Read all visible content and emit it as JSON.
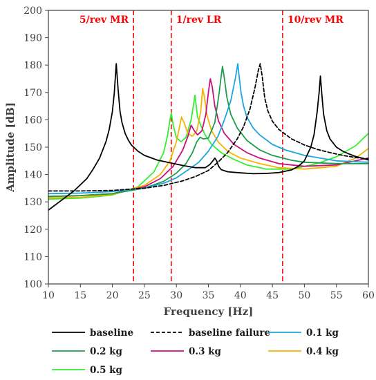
{
  "chart_data": {
    "type": "line",
    "title": "",
    "xlabel": "Frequency [Hz]",
    "ylabel": "Amplitude [dB]",
    "xlim": [
      10,
      60
    ],
    "ylim": [
      100,
      200
    ],
    "x_ticks": [
      10,
      15,
      20,
      25,
      30,
      35,
      40,
      45,
      50,
      55,
      60
    ],
    "y_ticks": [
      100,
      110,
      120,
      130,
      140,
      150,
      160,
      170,
      180,
      190,
      200
    ],
    "grid": false,
    "legend_position": "bottom",
    "annotations": [
      {
        "label": "5/rev MR",
        "x": 23.3,
        "color": "#ff0000"
      },
      {
        "label": "1/rev LR",
        "x": 29.2,
        "color": "#ff0000"
      },
      {
        "label": "10/rev MR",
        "x": 46.6,
        "color": "#ff0000"
      }
    ],
    "series": [
      {
        "name": "baseline",
        "color": "#000000",
        "dash": "solid",
        "x": [
          10,
          12,
          14,
          16,
          17,
          18,
          19,
          19.5,
          20,
          20.3,
          20.6,
          20.9,
          21.2,
          21.5,
          22,
          22.5,
          23,
          24,
          25,
          27,
          29,
          31,
          33,
          34.5,
          35.2,
          35.7,
          36,
          36.3,
          36.6,
          37,
          38,
          40,
          42,
          44,
          46,
          48,
          49,
          50,
          51,
          51.5,
          52,
          52.3,
          52.5,
          52.7,
          53,
          53.5,
          54,
          55,
          56,
          57,
          58,
          59,
          60
        ],
        "y": [
          127,
          130.5,
          134,
          138.5,
          142,
          146,
          152,
          156.5,
          163,
          170,
          180.5,
          171,
          163,
          159,
          155,
          152.5,
          150.7,
          148.5,
          147,
          145.3,
          144.3,
          143.3,
          142.5,
          142.5,
          143.6,
          145,
          146,
          145,
          143,
          141.8,
          141,
          140.6,
          140.3,
          140.4,
          140.7,
          141.7,
          142.9,
          145,
          150,
          154.5,
          163,
          170,
          176,
          170,
          162,
          156,
          153,
          150,
          148.5,
          147.5,
          146.6,
          146,
          145.3
        ]
      },
      {
        "name": "baseline failure",
        "color": "#000000",
        "dash": "dashed",
        "x": [
          10,
          15,
          20,
          25,
          28,
          31,
          33,
          35,
          36.5,
          38,
          39.5,
          40.5,
          41.5,
          42.3,
          42.8,
          43.1,
          43.4,
          43.8,
          44.3,
          45,
          46,
          48,
          50,
          52,
          54,
          56,
          58,
          60
        ],
        "y": [
          134,
          134,
          134.2,
          135,
          136,
          137.7,
          139.3,
          141.5,
          144.5,
          148,
          153,
          157.5,
          164,
          172,
          178,
          180.5,
          176,
          168,
          163.2,
          159.5,
          156.5,
          153,
          150.8,
          149.2,
          148,
          147,
          146.2,
          145.7
        ]
      },
      {
        "name": "0.1 kg",
        "color": "#1aa6dd",
        "dash": "solid",
        "x": [
          10,
          15,
          20,
          25,
          28,
          30,
          32,
          33.5,
          35,
          36.5,
          37.5,
          38.5,
          39.2,
          39.6,
          39.8,
          40.1,
          40.5,
          41,
          42,
          43,
          45,
          47,
          50,
          55,
          60
        ],
        "y": [
          133,
          133.2,
          133.8,
          135,
          136.8,
          138.8,
          142,
          144.5,
          148.5,
          154,
          160,
          167,
          175,
          180.5,
          176,
          170,
          165,
          161,
          157,
          154.5,
          151,
          149,
          147,
          145,
          144.5
        ]
      },
      {
        "name": "0.2 kg",
        "color": "#1e9c4a",
        "dash": "solid",
        "x": [
          10,
          15,
          20,
          25,
          28,
          30,
          31.5,
          32.5,
          33.2,
          33.7,
          34.2,
          35,
          36,
          36.7,
          37,
          37.2,
          37.5,
          37.9,
          38.5,
          39.5,
          41,
          43,
          45,
          48,
          50,
          55,
          60
        ],
        "y": [
          132,
          132.3,
          133,
          135,
          137.5,
          140.5,
          144,
          148,
          152,
          153.6,
          153,
          153.3,
          159,
          170,
          176,
          179.5,
          175,
          168,
          162,
          157,
          152.5,
          149,
          147,
          145.2,
          144.5,
          144,
          144
        ]
      },
      {
        "name": "0.3 kg",
        "color": "#c8107e",
        "dash": "solid",
        "x": [
          10,
          15,
          20,
          25,
          27.5,
          29.5,
          31,
          31.8,
          32.3,
          32.8,
          33.3,
          34,
          34.6,
          35,
          35.3,
          35.6,
          36,
          36.6,
          37.5,
          39,
          41,
          43,
          46,
          50,
          55,
          60
        ],
        "y": [
          132,
          132.3,
          133,
          135.5,
          138.5,
          143,
          149,
          154,
          158,
          156,
          154.5,
          156,
          162,
          170,
          175,
          172,
          165,
          159.5,
          155,
          151,
          148,
          146,
          144,
          143,
          143.5,
          146
        ]
      },
      {
        "name": "0.4 kg",
        "color": "#f5b400",
        "dash": "solid",
        "x": [
          10,
          15,
          20,
          25,
          27.5,
          29,
          30,
          30.5,
          30.8,
          31.2,
          31.8,
          32.5,
          33.2,
          33.8,
          34.1,
          34.4,
          34.8,
          35.5,
          36.5,
          38,
          40,
          43,
          46,
          50,
          55,
          58,
          60
        ],
        "y": [
          131.5,
          131.7,
          132.7,
          136,
          140,
          145,
          152,
          157.5,
          161,
          159,
          155,
          154,
          156,
          163,
          171.5,
          168,
          161.5,
          156,
          152,
          148.5,
          146,
          144,
          142.5,
          142,
          143,
          146,
          149.5
        ]
      },
      {
        "name": "0.5 kg",
        "color": "#33ee33",
        "dash": "solid",
        "x": [
          10,
          15,
          20,
          24,
          26.5,
          28,
          28.6,
          29,
          29.2,
          29.5,
          30,
          30.7,
          31.5,
          32.3,
          32.9,
          33.3,
          33.9,
          34.5,
          35.5,
          37,
          39,
          41,
          44,
          48,
          52,
          55,
          58,
          60
        ],
        "y": [
          131,
          131.4,
          132.5,
          135.5,
          141,
          148,
          154,
          160,
          162.5,
          158,
          153.5,
          152,
          153.5,
          160,
          169,
          161,
          157.5,
          154.5,
          151,
          148,
          145.5,
          143.5,
          142,
          142,
          144,
          146.5,
          150.5,
          155
        ]
      }
    ]
  }
}
